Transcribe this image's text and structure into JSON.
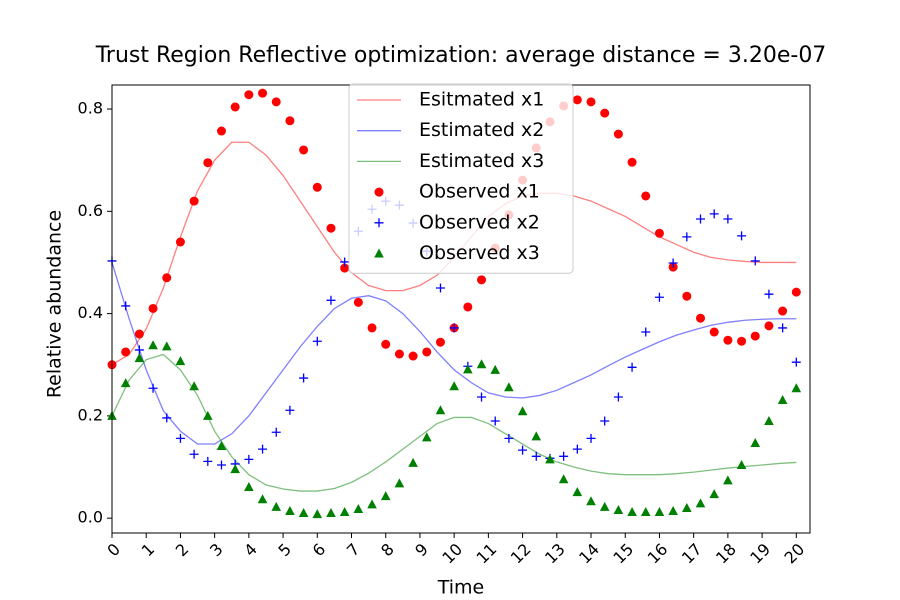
{
  "chart_data": {
    "type": "line-scatter",
    "title": "Trust Region Reflective optimization: average distance = 3.20e-07",
    "xlabel": "Time",
    "ylabel": "Relative abundance",
    "xlim": [
      0,
      20.4
    ],
    "ylim": [
      -0.029,
      0.847
    ],
    "xticks": [
      0,
      1,
      2,
      3,
      4,
      5,
      6,
      7,
      8,
      9,
      10,
      11,
      12,
      13,
      14,
      15,
      16,
      17,
      18,
      19,
      20
    ],
    "yticks": [
      {
        "value": 0,
        "label": "0.0"
      },
      0.2,
      0.4,
      0.6,
      0.8
    ],
    "legend": "upper center",
    "series": [
      {
        "name": "Esitmated x1",
        "kind": "line",
        "color": "red",
        "alpha": 0.5,
        "x": [
          0,
          0.5,
          1,
          1.5,
          2,
          2.5,
          3,
          3.5,
          4,
          4.5,
          5,
          5.5,
          6,
          6.5,
          7,
          7.5,
          8,
          8.5,
          9,
          9.5,
          10,
          10.5,
          11,
          11.5,
          12,
          12.5,
          13,
          13.5,
          14,
          14.5,
          15,
          15.5,
          16,
          16.5,
          17,
          17.5,
          18,
          18.5,
          19,
          19.5,
          20
        ],
        "values": [
          0.3,
          0.32,
          0.37,
          0.45,
          0.55,
          0.64,
          0.7,
          0.735,
          0.735,
          0.71,
          0.67,
          0.62,
          0.57,
          0.52,
          0.48,
          0.455,
          0.445,
          0.445,
          0.455,
          0.475,
          0.51,
          0.55,
          0.59,
          0.615,
          0.63,
          0.635,
          0.635,
          0.63,
          0.62,
          0.605,
          0.59,
          0.57,
          0.55,
          0.535,
          0.52,
          0.51,
          0.505,
          0.502,
          0.5,
          0.5,
          0.5
        ]
      },
      {
        "name": "Estimated x2",
        "kind": "line",
        "color": "blue",
        "alpha": 0.5,
        "x": [
          0,
          0.5,
          1,
          1.5,
          2,
          2.5,
          3,
          3.5,
          4,
          4.5,
          5,
          5.5,
          6,
          6.5,
          7,
          7.5,
          8,
          8.5,
          9,
          9.5,
          10,
          10.5,
          11,
          11.5,
          12,
          12.5,
          13,
          13.5,
          14,
          14.5,
          15,
          15.5,
          16,
          16.5,
          17,
          17.5,
          18,
          18.5,
          19,
          19.5,
          20
        ],
        "values": [
          0.5,
          0.39,
          0.29,
          0.21,
          0.17,
          0.145,
          0.145,
          0.165,
          0.2,
          0.245,
          0.29,
          0.335,
          0.375,
          0.41,
          0.43,
          0.435,
          0.425,
          0.4,
          0.365,
          0.325,
          0.29,
          0.265,
          0.245,
          0.237,
          0.235,
          0.24,
          0.25,
          0.265,
          0.28,
          0.298,
          0.315,
          0.33,
          0.345,
          0.358,
          0.368,
          0.377,
          0.383,
          0.387,
          0.389,
          0.39,
          0.39
        ]
      },
      {
        "name": "Estimated x3",
        "kind": "line",
        "color": "green",
        "alpha": 0.5,
        "x": [
          0,
          0.5,
          1,
          1.5,
          2,
          2.5,
          3,
          3.5,
          4,
          4.5,
          5,
          5.5,
          6,
          6.5,
          7,
          7.5,
          8,
          8.5,
          9,
          9.5,
          10,
          10.5,
          11,
          11.5,
          12,
          12.5,
          13,
          13.5,
          14,
          14.5,
          15,
          15.5,
          16,
          16.5,
          17,
          17.5,
          18,
          18.5,
          19,
          19.5,
          20
        ],
        "values": [
          0.2,
          0.27,
          0.31,
          0.32,
          0.29,
          0.24,
          0.17,
          0.12,
          0.085,
          0.065,
          0.057,
          0.053,
          0.053,
          0.058,
          0.07,
          0.088,
          0.11,
          0.135,
          0.16,
          0.185,
          0.197,
          0.197,
          0.185,
          0.165,
          0.145,
          0.125,
          0.11,
          0.1,
          0.092,
          0.087,
          0.085,
          0.085,
          0.085,
          0.087,
          0.09,
          0.094,
          0.098,
          0.101,
          0.104,
          0.107,
          0.109
        ]
      },
      {
        "name": "Observed x1",
        "kind": "circle",
        "color": "red",
        "x": [
          0,
          0.4,
          0.8,
          1.2,
          1.6,
          2,
          2.4,
          2.8,
          3.2,
          3.6,
          4,
          4.4,
          4.8,
          5.2,
          5.6,
          6,
          6.4,
          6.8,
          7.2,
          7.6,
          8,
          8.4,
          8.8,
          9.2,
          9.6,
          10,
          10.4,
          10.8,
          11.2,
          11.6,
          12,
          12.4,
          12.8,
          13.2,
          13.6,
          14,
          14.4,
          14.8,
          15.2,
          15.6,
          16,
          16.4,
          16.8,
          17.2,
          17.6,
          18,
          18.4,
          18.8,
          19.2,
          19.6,
          20
        ],
        "values": [
          0.3,
          0.325,
          0.36,
          0.41,
          0.47,
          0.54,
          0.62,
          0.695,
          0.757,
          0.804,
          0.828,
          0.831,
          0.814,
          0.777,
          0.72,
          0.647,
          0.567,
          0.489,
          0.422,
          0.372,
          0.34,
          0.321,
          0.317,
          0.325,
          0.344,
          0.372,
          0.413,
          0.466,
          0.528,
          0.593,
          0.661,
          0.724,
          0.775,
          0.806,
          0.818,
          0.814,
          0.792,
          0.751,
          0.696,
          0.63,
          0.557,
          0.491,
          0.434,
          0.391,
          0.364,
          0.348,
          0.346,
          0.356,
          0.376,
          0.405,
          0.442
        ]
      },
      {
        "name": "Observed x2",
        "kind": "plus",
        "color": "blue",
        "x": [
          0,
          0.4,
          0.8,
          1.2,
          1.6,
          2,
          2.4,
          2.8,
          3.2,
          3.6,
          4,
          4.4,
          4.8,
          5.2,
          5.6,
          6,
          6.4,
          6.8,
          7.2,
          7.6,
          8,
          8.4,
          8.8,
          9.2,
          9.6,
          10,
          10.4,
          10.8,
          11.2,
          11.6,
          12,
          12.4,
          12.8,
          13.2,
          13.6,
          14,
          14.4,
          14.8,
          15.2,
          15.6,
          16,
          16.4,
          16.8,
          17.2,
          17.6,
          18,
          18.4,
          18.8,
          19.2,
          19.6,
          20
        ],
        "values": [
          0.503,
          0.415,
          0.329,
          0.254,
          0.196,
          0.156,
          0.125,
          0.111,
          0.104,
          0.106,
          0.115,
          0.135,
          0.168,
          0.211,
          0.274,
          0.346,
          0.426,
          0.501,
          0.561,
          0.604,
          0.62,
          0.612,
          0.577,
          0.522,
          0.45,
          0.372,
          0.297,
          0.237,
          0.19,
          0.156,
          0.133,
          0.121,
          0.117,
          0.121,
          0.135,
          0.156,
          0.19,
          0.237,
          0.295,
          0.364,
          0.432,
          0.499,
          0.55,
          0.585,
          0.595,
          0.585,
          0.552,
          0.503,
          0.438,
          0.372,
          0.305
        ]
      },
      {
        "name": "Observed x3",
        "kind": "triangle",
        "color": "green",
        "x": [
          0,
          0.4,
          0.8,
          1.2,
          1.6,
          2,
          2.4,
          2.8,
          3.2,
          3.6,
          4,
          4.4,
          4.8,
          5.2,
          5.6,
          6,
          6.4,
          6.8,
          7.2,
          7.6,
          8,
          8.4,
          8.8,
          9.2,
          9.6,
          10,
          10.4,
          10.8,
          11.2,
          11.6,
          12,
          12.4,
          12.8,
          13.2,
          13.6,
          14,
          14.4,
          14.8,
          15.2,
          15.6,
          16,
          16.4,
          16.8,
          17.2,
          17.6,
          18,
          18.4,
          18.8,
          19.2,
          19.6,
          20
        ],
        "values": [
          0.2,
          0.264,
          0.313,
          0.338,
          0.336,
          0.307,
          0.258,
          0.2,
          0.141,
          0.096,
          0.061,
          0.037,
          0.022,
          0.014,
          0.01,
          0.008,
          0.01,
          0.012,
          0.018,
          0.027,
          0.043,
          0.068,
          0.108,
          0.158,
          0.211,
          0.258,
          0.291,
          0.301,
          0.29,
          0.256,
          0.209,
          0.16,
          0.115,
          0.076,
          0.051,
          0.033,
          0.022,
          0.016,
          0.012,
          0.012,
          0.012,
          0.014,
          0.02,
          0.029,
          0.047,
          0.074,
          0.104,
          0.147,
          0.19,
          0.231,
          0.254
        ]
      }
    ]
  }
}
